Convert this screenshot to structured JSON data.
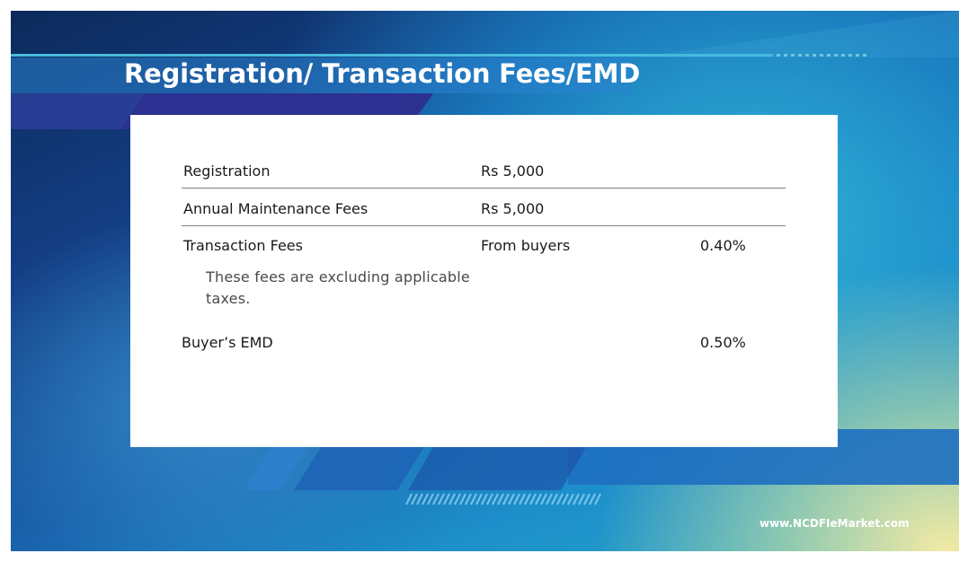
{
  "slide": {
    "title": "Registration/ Transaction Fees/EMD",
    "fees_table": {
      "rows": [
        {
          "item": "Registration",
          "detail": "Rs 5,000",
          "rate": ""
        },
        {
          "item": "Annual Maintenance Fees",
          "detail": "Rs 5,000",
          "rate": ""
        },
        {
          "item": "Transaction Fees",
          "detail": "From buyers",
          "rate": "0.40%"
        }
      ],
      "note": "These fees are excluding applicable taxes.",
      "emd": {
        "item": "Buyer’s EMD",
        "rate": "0.50%"
      }
    },
    "footer": "www.NCDFIeMarket.com"
  },
  "colors": {
    "navy": "#0c2a5b",
    "blue": "#1a63ad",
    "cyan": "#2bb5c6",
    "light": "#f2e9a4"
  }
}
